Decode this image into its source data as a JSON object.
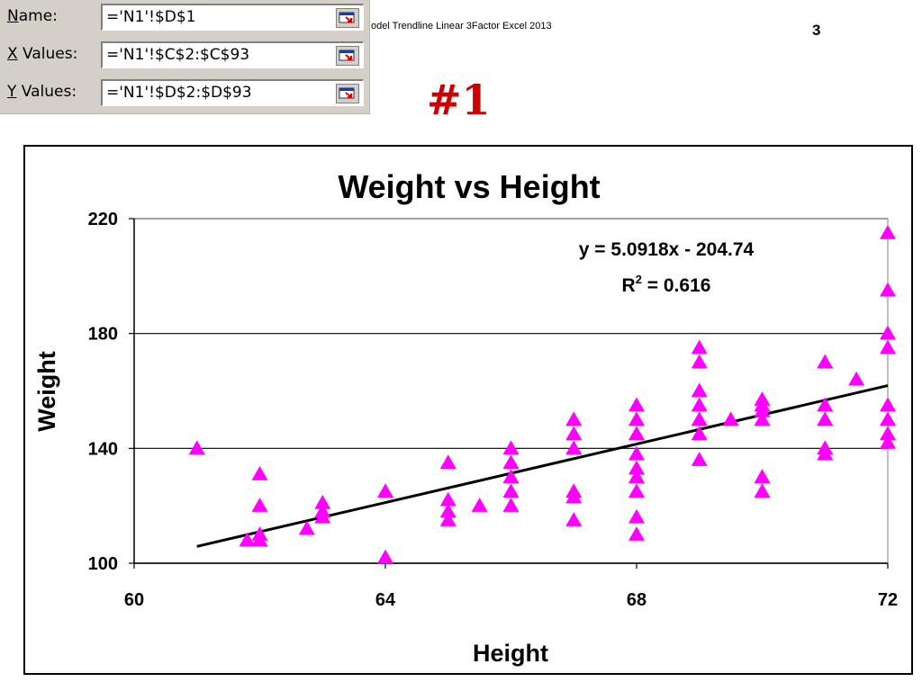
{
  "dialog": {
    "rows": [
      {
        "label_underline": "N",
        "label_rest": "ame:",
        "value": "='N1'!$D$1"
      },
      {
        "label_underline": "X",
        "label_rest": " Values:",
        "value": "='N1'!$C$2:$C$93"
      },
      {
        "label_underline": "Y",
        "label_rest": " Values:",
        "value": "='N1'!$D$2:$D$93"
      }
    ]
  },
  "subtitle": "odel Trendline Linear 3Factor Excel 2013",
  "page_number": "3",
  "slide_tag": "#1",
  "colors": {
    "marker": "#ff00ff",
    "trendline": "#000000",
    "tag": "#cc0000"
  },
  "chart_data": {
    "type": "scatter",
    "title": "Weight vs Height",
    "xlabel": "Height",
    "ylabel": "Weight",
    "xlim": [
      60,
      72
    ],
    "ylim": [
      100,
      220
    ],
    "xticks": [
      "60",
      "64",
      "68",
      "72"
    ],
    "yticks": [
      "100",
      "140",
      "180",
      "220"
    ],
    "grid": "horizontal",
    "marker": "triangle",
    "trendline": {
      "type": "linear",
      "slope": 5.0918,
      "intercept": -204.74,
      "x_range": [
        61,
        72
      ],
      "equation": "y = 5.0918x - 204.74",
      "r2_prefix": "R",
      "r2_exp": "2",
      "r2_suffix": " = 0.616"
    },
    "points": [
      [
        61,
        140
      ],
      [
        61.8,
        108
      ],
      [
        62,
        110
      ],
      [
        62,
        108
      ],
      [
        62,
        120
      ],
      [
        62,
        131
      ],
      [
        62.75,
        112
      ],
      [
        63,
        116
      ],
      [
        63,
        118
      ],
      [
        63,
        121
      ],
      [
        64,
        125
      ],
      [
        64,
        102
      ],
      [
        65,
        115
      ],
      [
        65,
        118
      ],
      [
        65,
        122
      ],
      [
        65,
        135
      ],
      [
        65.5,
        120
      ],
      [
        66,
        120
      ],
      [
        66,
        125
      ],
      [
        66,
        130
      ],
      [
        66,
        135
      ],
      [
        66,
        140
      ],
      [
        67,
        115
      ],
      [
        67,
        123
      ],
      [
        67,
        125
      ],
      [
        67,
        140
      ],
      [
        67,
        145
      ],
      [
        67,
        150
      ],
      [
        68,
        110
      ],
      [
        68,
        116
      ],
      [
        68,
        125
      ],
      [
        68,
        130
      ],
      [
        68,
        133
      ],
      [
        68,
        138
      ],
      [
        68,
        145
      ],
      [
        68,
        150
      ],
      [
        68,
        155
      ],
      [
        69,
        136
      ],
      [
        69,
        145
      ],
      [
        69,
        150
      ],
      [
        69,
        155
      ],
      [
        69,
        160
      ],
      [
        69,
        170
      ],
      [
        69,
        175
      ],
      [
        69.5,
        150
      ],
      [
        70,
        125
      ],
      [
        70,
        130
      ],
      [
        70,
        150
      ],
      [
        70,
        153
      ],
      [
        70,
        155
      ],
      [
        70,
        157
      ],
      [
        71,
        138
      ],
      [
        71,
        140
      ],
      [
        71,
        150
      ],
      [
        71,
        155
      ],
      [
        71,
        170
      ],
      [
        71.5,
        164
      ],
      [
        72,
        142
      ],
      [
        72,
        145
      ],
      [
        72,
        150
      ],
      [
        72,
        155
      ],
      [
        72,
        175
      ],
      [
        72,
        180
      ],
      [
        72,
        195
      ],
      [
        72,
        215
      ]
    ]
  }
}
